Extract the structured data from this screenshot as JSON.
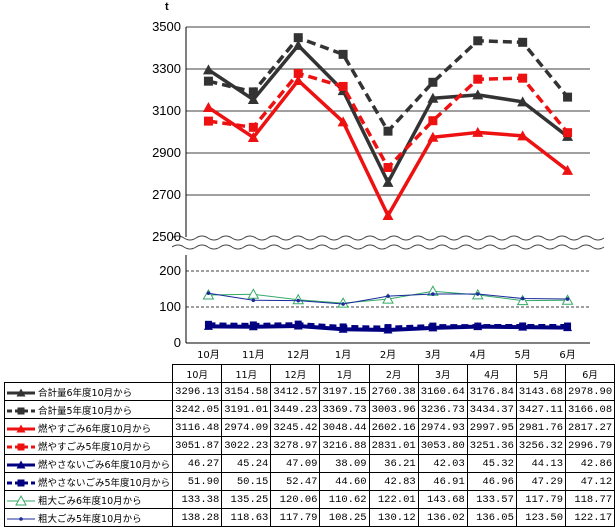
{
  "chart_data": {
    "type": "line",
    "unit_label": "t",
    "categories": [
      "10月",
      "11月",
      "12月",
      "1月",
      "2月",
      "3月",
      "4月",
      "5月",
      "6月"
    ],
    "upper_axis": {
      "ylim": [
        2500,
        3500
      ],
      "ticks": [
        "2500",
        "2700",
        "2900",
        "3100",
        "3300",
        "3500"
      ]
    },
    "lower_axis": {
      "ylim": [
        0,
        200
      ],
      "ticks": [
        "0",
        "100",
        "200"
      ]
    },
    "series": [
      {
        "name": "合計量6年度10月から",
        "color": "#333333",
        "dash": false,
        "marker": "triangle",
        "axis": "upper",
        "values": [
          3296.13,
          3154.58,
          3412.57,
          3197.15,
          2760.38,
          3160.64,
          3176.84,
          3143.68,
          2978.9
        ],
        "labels": [
          "3296.13",
          "3154.58",
          "3412.57",
          "3197.15",
          "2760.38",
          "3160.64",
          "3176.84",
          "3143.68",
          "2978.90"
        ]
      },
      {
        "name": "合計量5年度10月から",
        "color": "#333333",
        "dash": true,
        "marker": "square",
        "axis": "upper",
        "values": [
          3242.05,
          3191.01,
          3449.23,
          3369.73,
          3003.96,
          3236.73,
          3434.37,
          3427.11,
          3166.08
        ],
        "labels": [
          "3242.05",
          "3191.01",
          "3449.23",
          "3369.73",
          "3003.96",
          "3236.73",
          "3434.37",
          "3427.11",
          "3166.08"
        ]
      },
      {
        "name": "燃やすごみ6年度10月から",
        "color": "#ee1111",
        "dash": false,
        "marker": "triangle",
        "axis": "upper",
        "values": [
          3116.48,
          2974.09,
          3245.42,
          3048.44,
          2602.16,
          2974.93,
          2997.95,
          2981.76,
          2817.27
        ],
        "labels": [
          "3116.48",
          "2974.09",
          "3245.42",
          "3048.44",
          "2602.16",
          "2974.93",
          "2997.95",
          "2981.76",
          "2817.27"
        ]
      },
      {
        "name": "燃やすごみ5年度10月から",
        "color": "#ee1111",
        "dash": true,
        "marker": "square",
        "axis": "upper",
        "values": [
          3051.87,
          3022.23,
          3278.97,
          3216.88,
          2831.01,
          3053.8,
          3251.36,
          3256.32,
          2996.79
        ],
        "labels": [
          "3051.87",
          "3022.23",
          "3278.97",
          "3216.88",
          "2831.01",
          "3053.80",
          "3251.36",
          "3256.32",
          "2996.79"
        ]
      },
      {
        "name": "燃やさないごみ6年度10月から",
        "color": "#000080",
        "dash": false,
        "marker": "triangle",
        "axis": "lower",
        "values": [
          46.27,
          45.24,
          47.09,
          38.09,
          36.21,
          42.03,
          45.32,
          44.13,
          42.86
        ],
        "labels": [
          "46.27",
          "45.24",
          "47.09",
          "38.09",
          "36.21",
          "42.03",
          "45.32",
          "44.13",
          "42.86"
        ]
      },
      {
        "name": "燃やさないごみ5年度10月から",
        "color": "#000080",
        "dash": true,
        "marker": "square",
        "axis": "lower",
        "values": [
          51.9,
          50.15,
          52.47,
          44.6,
          42.83,
          46.91,
          46.96,
          47.29,
          47.12
        ],
        "labels": [
          "51.90",
          "50.15",
          "52.47",
          "44.60",
          "42.83",
          "46.91",
          "46.96",
          "47.29",
          "47.12"
        ]
      },
      {
        "name": "粗大ごみ6年度10月から",
        "color": "#33aa66",
        "dash": false,
        "marker": "open-triangle",
        "axis": "lower",
        "values": [
          133.38,
          135.25,
          120.06,
          110.62,
          122.01,
          143.68,
          133.57,
          117.79,
          118.77
        ],
        "labels": [
          "133.38",
          "135.25",
          "120.06",
          "110.62",
          "122.01",
          "143.68",
          "133.57",
          "117.79",
          "118.77"
        ]
      },
      {
        "name": "粗大ごみ5年度10月から",
        "color": "#1a2a9a",
        "dash": false,
        "marker": "dot",
        "axis": "lower",
        "values": [
          138.28,
          118.63,
          117.79,
          108.25,
          130.12,
          136.02,
          136.05,
          123.5,
          122.17
        ],
        "labels": [
          "138.28",
          "118.63",
          "117.79",
          "108.25",
          "130.12",
          "136.02",
          "136.05",
          "123.50",
          "122.17"
        ]
      }
    ]
  }
}
